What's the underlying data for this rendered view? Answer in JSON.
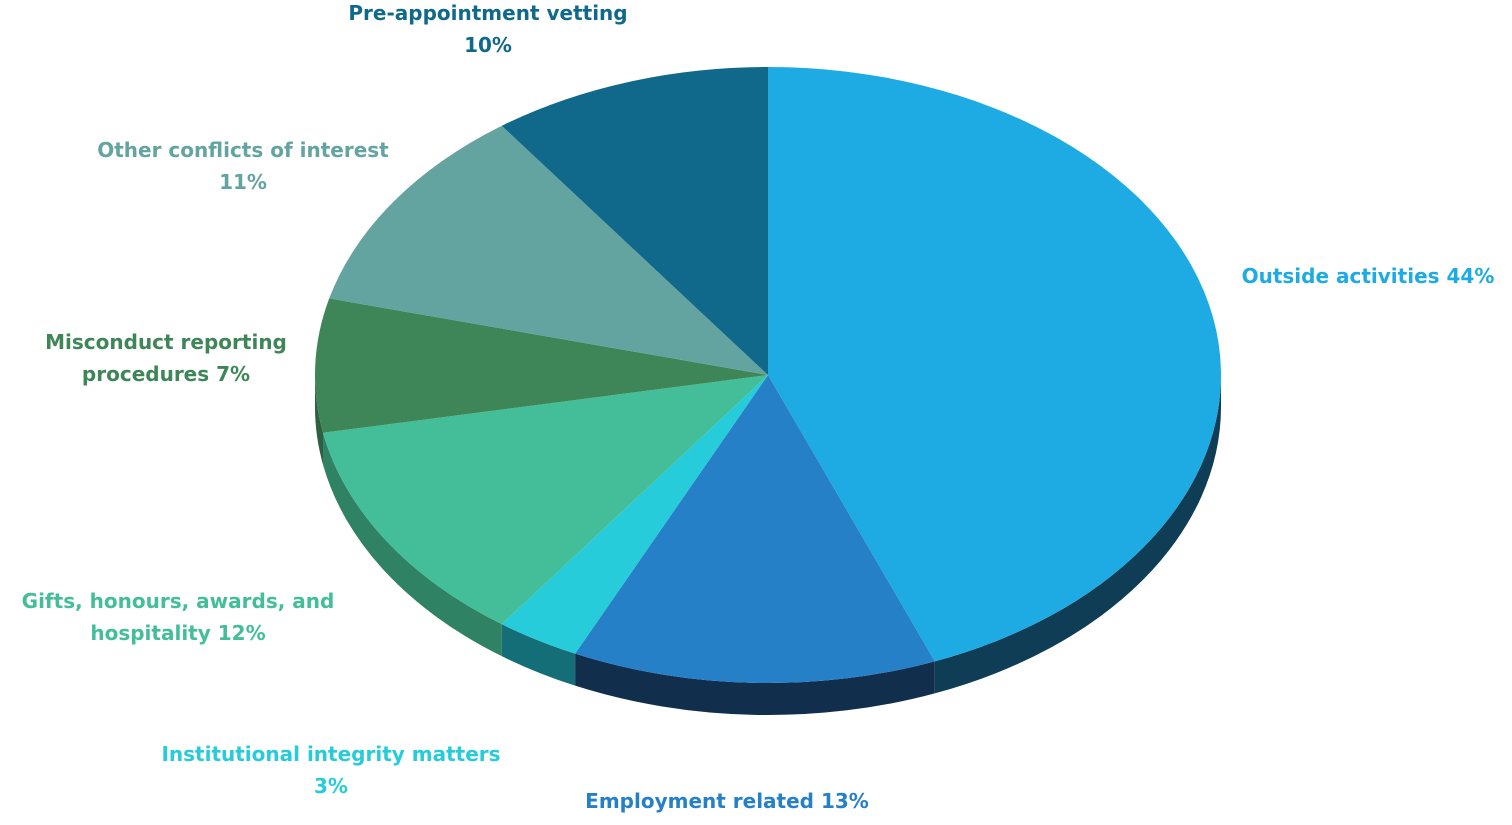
{
  "chart_data": {
    "type": "pie",
    "title": "",
    "slices": [
      {
        "name": "Outside activities",
        "value": 44,
        "color": "#1EABE3",
        "side_color": "#0E3D55",
        "label_lines": [
          "Outside activities 44%"
        ]
      },
      {
        "name": "Employment related",
        "value": 13,
        "color": "#2580C7",
        "side_color": "#122E4D",
        "label_lines": [
          "Employment related 13%"
        ]
      },
      {
        "name": "Institutional integrity matters",
        "value": 3,
        "color": "#27CCDA",
        "side_color": "#146E77",
        "label_lines": [
          "Institutional integrity matters",
          "3%"
        ]
      },
      {
        "name": "Gifts, honours, awards, and hospitality",
        "value": 12,
        "color": "#43BE98",
        "side_color": "#2F8263",
        "label_lines": [
          "Gifts, honours, awards, and",
          "hospitality 12%"
        ]
      },
      {
        "name": "Misconduct reporting procedures",
        "value": 7,
        "color": "#3E8657",
        "side_color": "#2C6040",
        "label_lines": [
          "Misconduct reporting",
          "procedures 7%"
        ]
      },
      {
        "name": "Other conflicts of interest",
        "value": 11,
        "color": "#63A3A0",
        "side_color": "#467573",
        "label_lines": [
          "Other conflicts of interest",
          "11%"
        ]
      },
      {
        "name": "Pre-appointment vetting",
        "value": 10,
        "color": "#10698A",
        "side_color": "#0A4358",
        "label_lines": [
          "Pre-appointment vetting",
          "10%"
        ]
      }
    ],
    "label_colors": [
      "#1EABE3",
      "#2580C7",
      "#27CCDA",
      "#43BE98",
      "#3E8657",
      "#63A3A0",
      "#10698A"
    ]
  }
}
